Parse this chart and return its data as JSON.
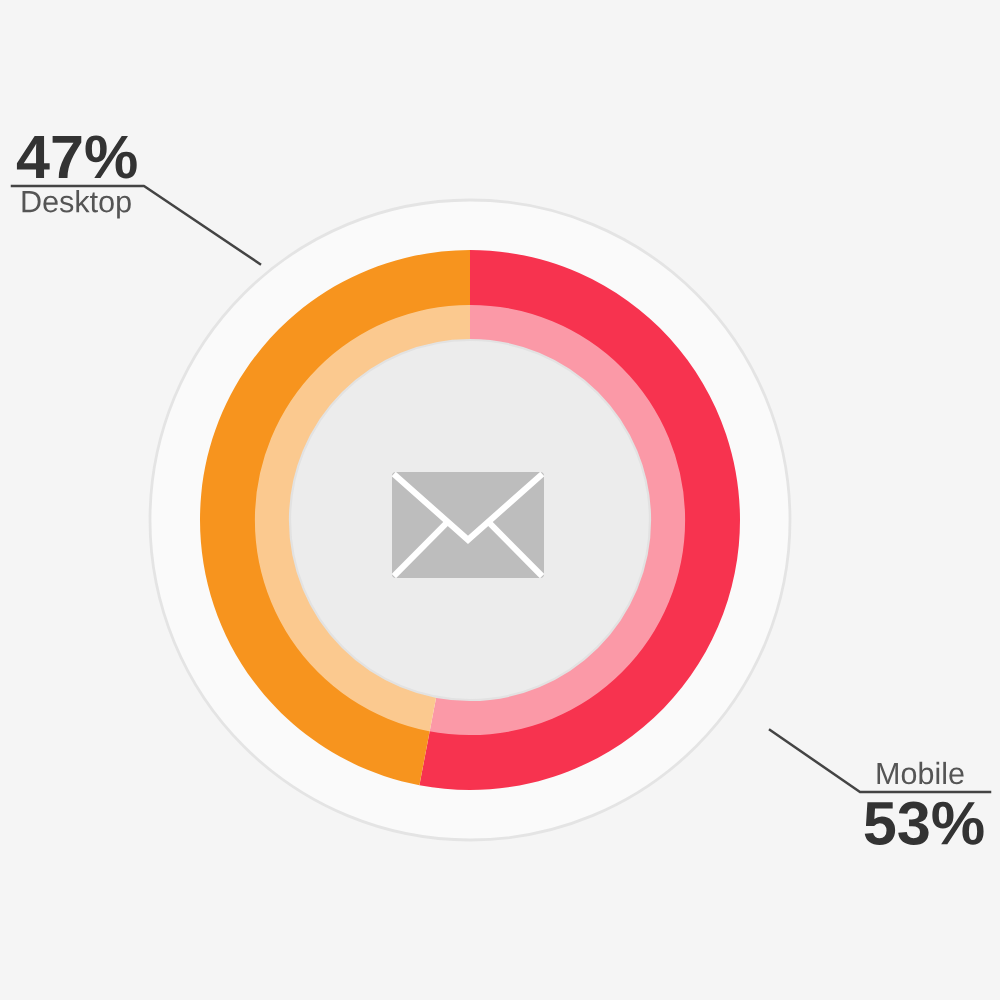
{
  "chart_data": {
    "type": "donut",
    "categories": [
      "Mobile",
      "Desktop"
    ],
    "values": [
      53,
      47
    ],
    "colors": [
      "#f7334f",
      "#f7941e"
    ],
    "value_labels": [
      "53%",
      "47%"
    ]
  }
}
